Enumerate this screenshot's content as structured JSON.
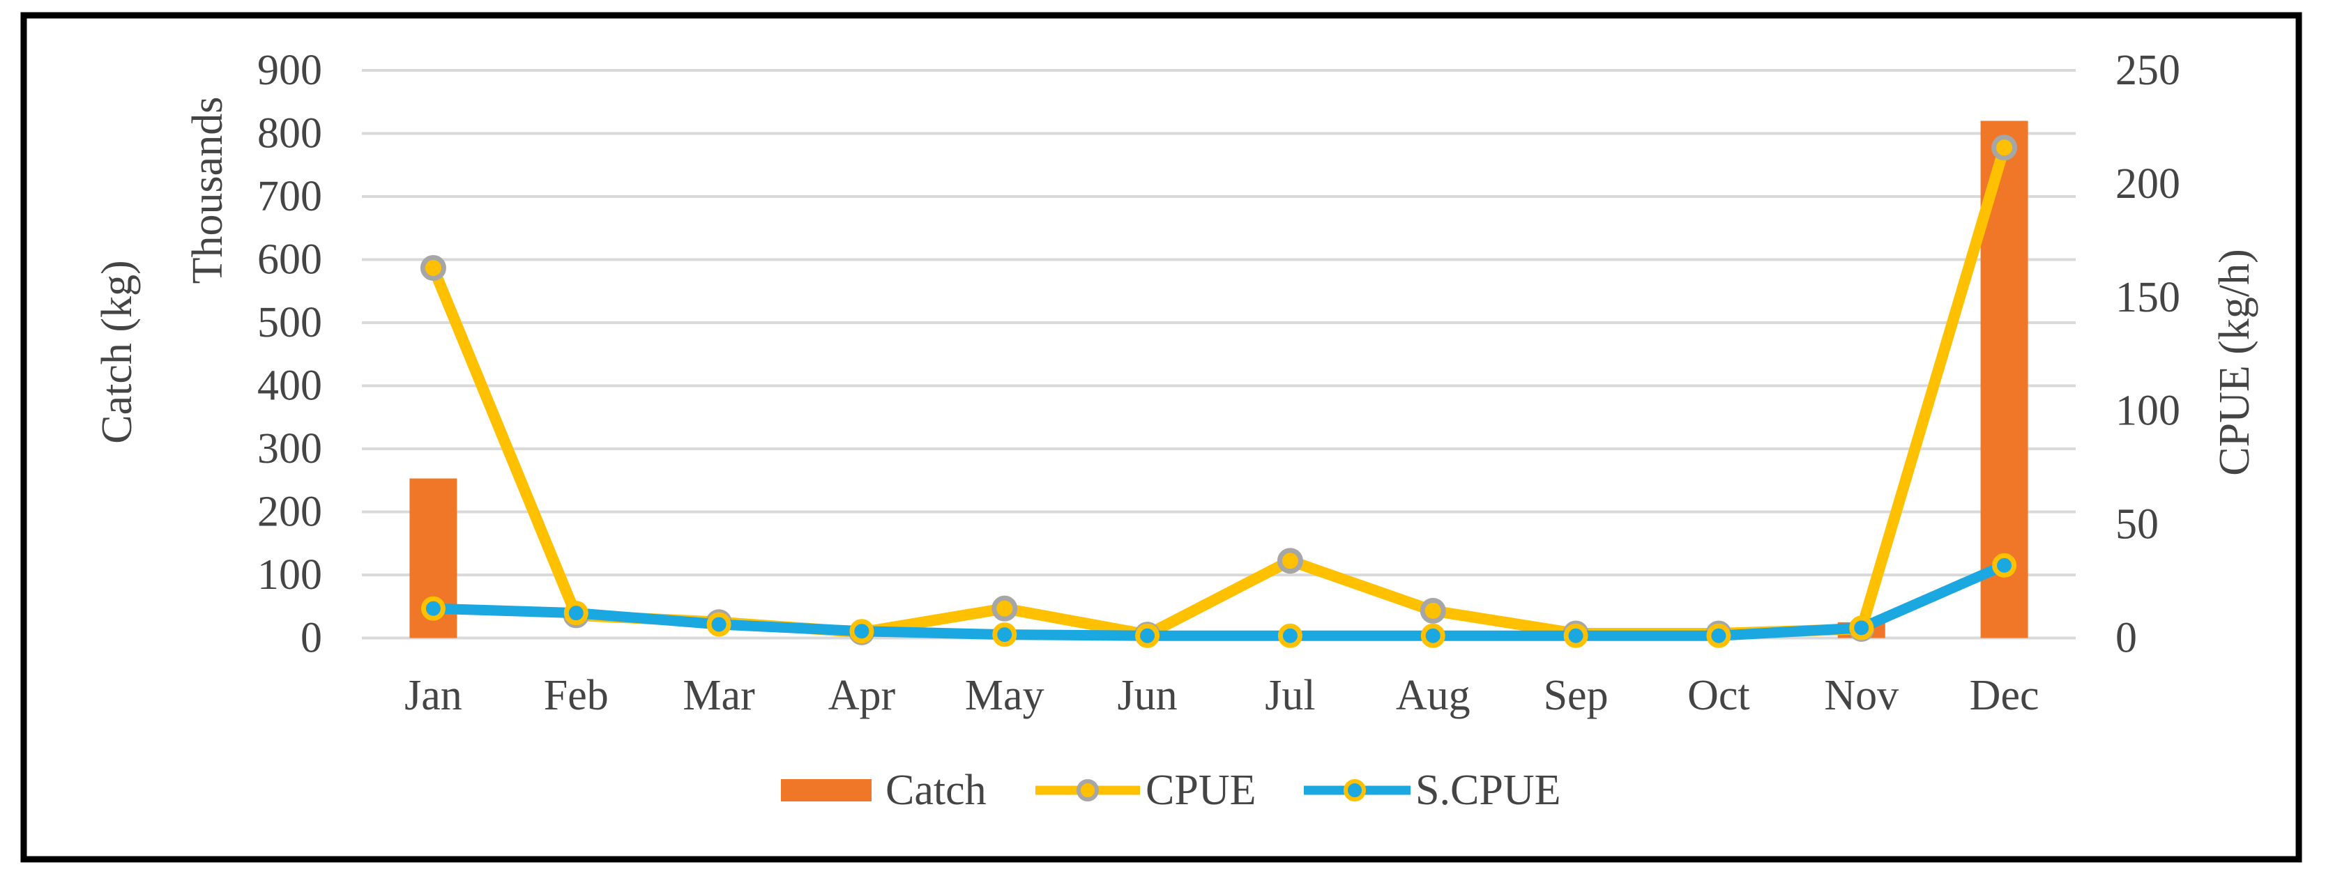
{
  "colors": {
    "catch_bar": "#F07628",
    "cpue_line": "#FFC000",
    "cpue_marker_fill": "#FFC000",
    "cpue_marker_ring": "#A6A6A6",
    "scpue_line": "#1BA7E0",
    "scpue_marker_fill": "#1BA7E0",
    "scpue_marker_ring": "#FFC000",
    "gridline": "#D9D9D9",
    "text": "#444444",
    "border": "#000000",
    "background": "#FFFFFF"
  },
  "legend": {
    "items": [
      {
        "label": "Catch",
        "type": "bar",
        "series": "Catch"
      },
      {
        "label": "CPUE",
        "type": "line",
        "series": "CPUE"
      },
      {
        "label": "S.CPUE",
        "type": "line",
        "series": "S.CPUE"
      }
    ]
  },
  "chart_data": {
    "type": "bar",
    "subtype": "combo: bars on left axis + two marker-lines on right axis",
    "title": "",
    "categories": [
      "Jan",
      "Feb",
      "Mar",
      "Apr",
      "May",
      "Jun",
      "Jul",
      "Aug",
      "Sep",
      "Oct",
      "Nov",
      "Dec"
    ],
    "series": [
      {
        "name": "Catch",
        "type": "bar",
        "axis": "left",
        "unit": "thousand kg",
        "values": [
          253,
          0,
          0,
          0,
          0,
          0,
          0,
          0,
          0,
          0,
          25,
          820
        ]
      },
      {
        "name": "CPUE",
        "type": "line",
        "axis": "right",
        "unit": "kg/h",
        "values": [
          163,
          10,
          7,
          2.5,
          13,
          1.5,
          34,
          12,
          2,
          2,
          4,
          216
        ]
      },
      {
        "name": "S.CPUE",
        "type": "line",
        "axis": "right",
        "unit": "kg/h",
        "values": [
          13,
          11,
          6,
          3,
          1.5,
          1,
          1,
          1,
          1,
          1,
          4.5,
          32
        ]
      }
    ],
    "left_axis": {
      "title": "Catch (kg)",
      "units_label": "Thousands",
      "min": 0,
      "max": 900,
      "step": 100,
      "ticks": [
        "900",
        "800",
        "700",
        "600",
        "500",
        "400",
        "300",
        "200",
        "100",
        "0"
      ]
    },
    "right_axis": {
      "title": "CPUE (kg/h)",
      "min": 0,
      "max": 250,
      "step": 50,
      "ticks": [
        "250",
        "200",
        "150",
        "100",
        "50",
        "0"
      ]
    },
    "x_axis": {
      "ticks": [
        "Jan",
        "Feb",
        "Mar",
        "Apr",
        "May",
        "Jun",
        "Jul",
        "Aug",
        "Sep",
        "Oct",
        "Nov",
        "Dec"
      ]
    },
    "grid": "horizontal gridlines on, vertical off",
    "legend_position": "bottom-center"
  }
}
